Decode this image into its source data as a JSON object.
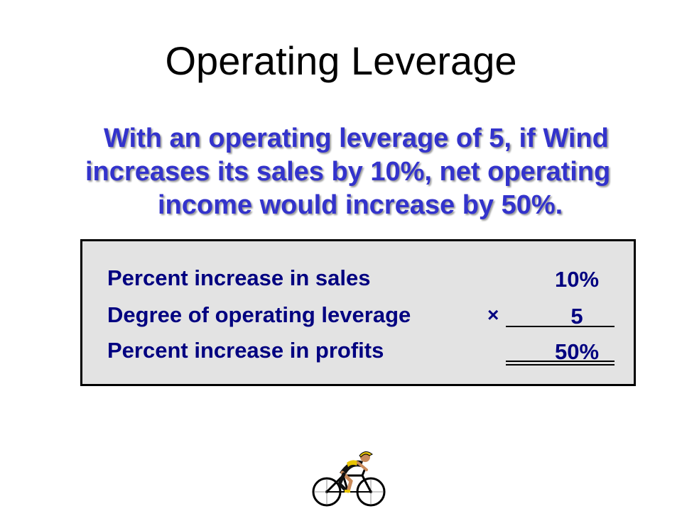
{
  "slide": {
    "title": "Operating Leverage",
    "intro": {
      "line1": "With an operating leverage of 5, if Wind",
      "line2": "increases its sales by 10%,  net operating",
      "line3": "income would increase by 50%."
    },
    "calculation": {
      "rows": [
        {
          "label": "Percent increase in sales",
          "operator": "",
          "value": "10%"
        },
        {
          "label": "Degree of operating leverage",
          "operator": "×",
          "value": "5"
        },
        {
          "label": "Percent increase in profits",
          "operator": "",
          "value": "50%"
        }
      ]
    },
    "colors": {
      "title": "#000000",
      "intro_text": "#3333cc",
      "box_text": "#000080",
      "box_background": "#e3e3e3"
    },
    "clipart": {
      "icon": "cyclist-icon"
    }
  }
}
